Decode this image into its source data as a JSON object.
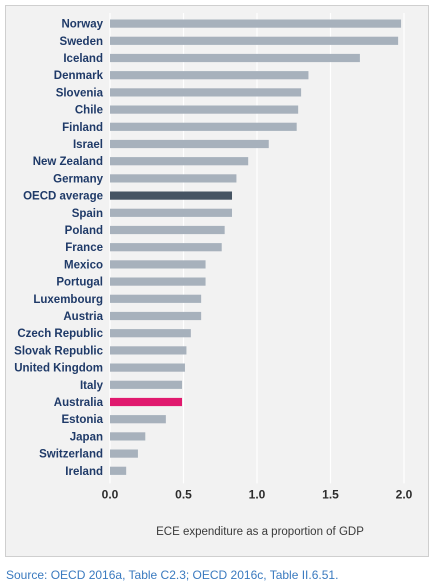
{
  "chart_data": {
    "type": "bar",
    "orientation": "horizontal",
    "categories": [
      "Norway",
      "Sweden",
      "Iceland",
      "Denmark",
      "Slovenia",
      "Chile",
      "Finland",
      "Israel",
      "New Zealand",
      "Germany",
      "OECD average",
      "Spain",
      "Poland",
      "France",
      "Mexico",
      "Portugal",
      "Luxembourg",
      "Austria",
      "Czech Republic",
      "Slovak Republic",
      "United Kingdom",
      "Italy",
      "Australia",
      "Estonia",
      "Japan",
      "Switzerland",
      "Ireland"
    ],
    "values": [
      1.98,
      1.96,
      1.7,
      1.35,
      1.3,
      1.28,
      1.27,
      1.08,
      0.94,
      0.86,
      0.83,
      0.83,
      0.78,
      0.76,
      0.65,
      0.65,
      0.62,
      0.62,
      0.55,
      0.52,
      0.51,
      0.49,
      0.49,
      0.38,
      0.24,
      0.19,
      0.11
    ],
    "xlabel": "ECE expenditure as a proportion of GDP",
    "xlim": [
      0,
      2.0
    ],
    "xticks": [
      "0.0",
      "0.5",
      "1.0",
      "1.5",
      "2.0"
    ],
    "grid": "vertical",
    "colors": {
      "default": "#a7b1bc",
      "highlight": {
        "OECD average": "#465463",
        "Australia": "#e0196e"
      },
      "grid": "#ffffff",
      "background": "#f2f2f2"
    }
  },
  "source": "Source: OECD 2016a, Table C2.3; OECD 2016c, Table II.6.51."
}
